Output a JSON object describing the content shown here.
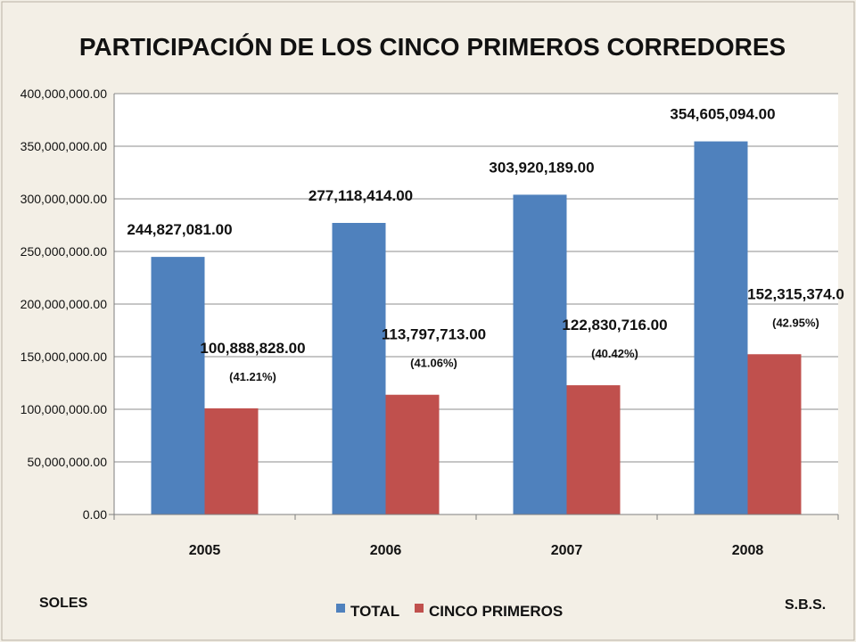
{
  "chart_data": {
    "type": "bar",
    "title": "PARTICIPACIÓN DE LOS CINCO PRIMEROS CORREDORES",
    "categories": [
      "2005",
      "2006",
      "2007",
      "2008"
    ],
    "series": [
      {
        "name": "TOTAL",
        "color": "#4f81bd",
        "values": [
          244827081,
          277118414,
          303920189,
          354605094
        ],
        "labels": [
          "244,827,081.00",
          "277,118,414.00",
          "303,920,189.00",
          "354,605,094.00"
        ]
      },
      {
        "name": "CINCO PRIMEROS",
        "color": "#c0504d",
        "values": [
          100888828,
          113797713,
          122830716,
          152315374
        ],
        "labels": [
          "100,888,828.00",
          "113,797,713.00",
          "122,830,716.00",
          "152,315,374.0"
        ],
        "percent_labels": [
          "(41.21%)",
          "(41.06%)",
          "(40.42%)",
          "(42.95%)"
        ]
      }
    ],
    "ylim": [
      0,
      400000000
    ],
    "yticks": [
      {
        "value": 0,
        "label": "0.00"
      },
      {
        "value": 50000000,
        "label": "50,000,000.00"
      },
      {
        "value": 100000000,
        "label": "100,000,000.00"
      },
      {
        "value": 150000000,
        "label": "150,000,000.00"
      },
      {
        "value": 200000000,
        "label": "200,000,000.00"
      },
      {
        "value": 250000000,
        "label": "250,000,000.00"
      },
      {
        "value": 300000000,
        "label": "300,000,000.00"
      },
      {
        "value": 350000000,
        "label": "350,000,000.00"
      },
      {
        "value": 400000000,
        "label": "400,000,000.00"
      }
    ],
    "grid": true,
    "legend": "bottom-center"
  },
  "notes": {
    "left": "SOLES",
    "right": "S.B.S."
  }
}
